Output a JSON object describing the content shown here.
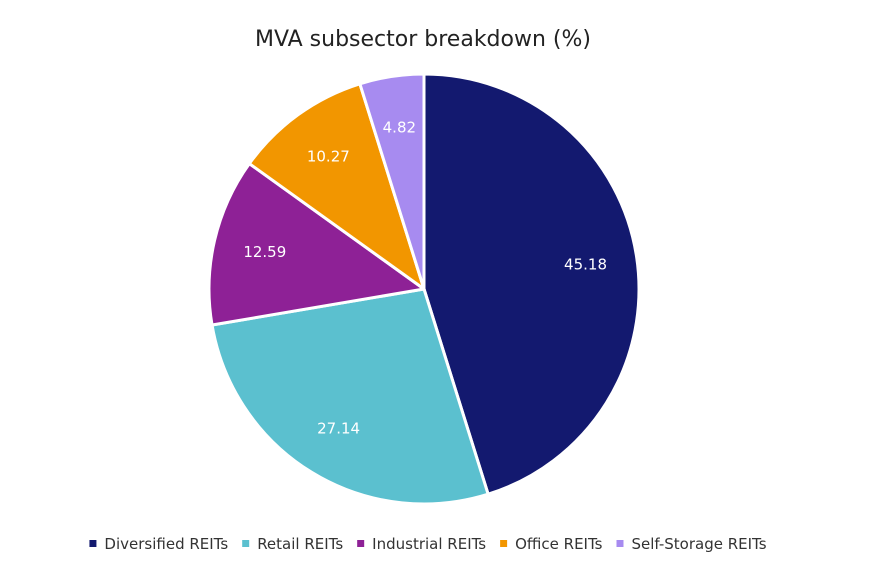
{
  "chart_data": {
    "type": "pie",
    "title": "MVA subsector breakdown (%)",
    "categories": [
      "Diversified REITs",
      "Retail REITs",
      "Industrial REITs",
      "Office REITs",
      "Self-Storage REITs"
    ],
    "values": [
      45.18,
      27.14,
      12.59,
      10.27,
      4.82
    ],
    "value_labels": [
      "45.18",
      "27.14",
      "12.59",
      "10.27",
      "4.82"
    ],
    "colors": [
      "#13196F",
      "#5BC0CF",
      "#8E2196",
      "#F29600",
      "#A78BF0"
    ],
    "start_angle": "12 o'clock",
    "direction": "clockwise",
    "legend_position": "bottom"
  }
}
